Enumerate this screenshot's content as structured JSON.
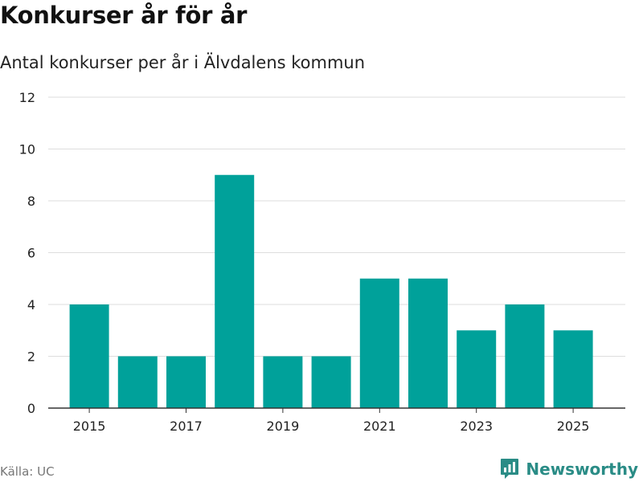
{
  "header": {
    "title": "Konkurser år för år",
    "subtitle": "Antal konkurser per år i Älvdalens kommun"
  },
  "footer": {
    "source": "Källa: UC",
    "brand": "Newsworthy",
    "brand_icon": "newsworthy-logo-icon"
  },
  "colors": {
    "bar": "#00a19a",
    "grid": "#dddddd",
    "axis": "#333333",
    "brand": "#2a8c86"
  },
  "chart_data": {
    "type": "bar",
    "categories": [
      "2015",
      "2016",
      "2017",
      "2018",
      "2019",
      "2020",
      "2021",
      "2022",
      "2023",
      "2024",
      "2025"
    ],
    "values": [
      4,
      2,
      2,
      9,
      2,
      2,
      5,
      5,
      3,
      4,
      3
    ],
    "x_tick_labels": [
      "2015",
      "2017",
      "2019",
      "2021",
      "2023",
      "2025"
    ],
    "y_ticks": [
      0,
      2,
      4,
      6,
      8,
      10,
      12
    ],
    "ylim": [
      0,
      12
    ],
    "title": "Konkurser år för år",
    "subtitle": "Antal konkurser per år i Älvdalens kommun",
    "xlabel": "",
    "ylabel": "",
    "grid": true,
    "legend": "none"
  }
}
